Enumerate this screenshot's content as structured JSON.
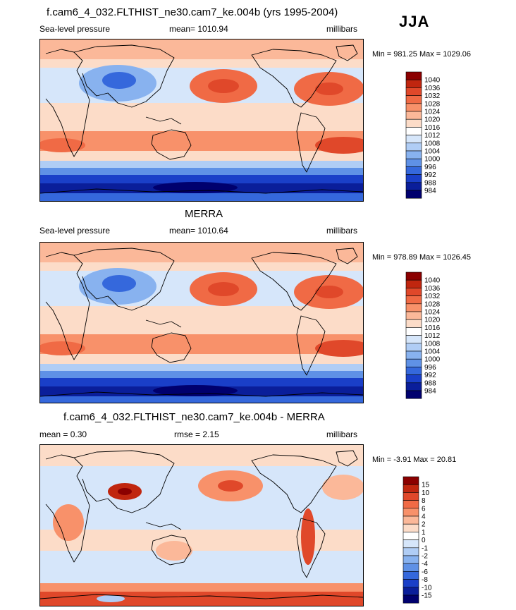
{
  "season": "JJA",
  "chart_data": [
    {
      "type": "heatmap",
      "title": "f.cam6_4_032.FLTHIST_ne30.cam7_ke.004b (yrs 1995-2004)",
      "variable": "Sea-level pressure",
      "stat_label": "mean= 1010.94",
      "units": "millibars",
      "minmax": "Min = 981.25 Max = 1029.06",
      "colorbar_levels": [
        "1040",
        "1036",
        "1032",
        "1028",
        "1024",
        "1020",
        "1016",
        "1012",
        "1008",
        "1004",
        "1000",
        "996",
        "992",
        "988",
        "984"
      ],
      "colorbar_colors": [
        "#8b0000",
        "#c0260f",
        "#e0482a",
        "#f06a45",
        "#f8916a",
        "#fbb899",
        "#fcdcc8",
        "#ffffff",
        "#d6e6fa",
        "#b0cdf5",
        "#88b2ef",
        "#5f91e6",
        "#3568dc",
        "#1a3fc8",
        "#0a1e9a",
        "#00006e"
      ]
    },
    {
      "type": "heatmap",
      "title": "MERRA",
      "variable": "Sea-level pressure",
      "stat_label": "mean= 1010.64",
      "units": "millibars",
      "minmax": "Min = 978.89 Max = 1026.45",
      "colorbar_levels": [
        "1040",
        "1036",
        "1032",
        "1028",
        "1024",
        "1020",
        "1016",
        "1012",
        "1008",
        "1004",
        "1000",
        "996",
        "992",
        "988",
        "984"
      ],
      "colorbar_colors": [
        "#8b0000",
        "#c0260f",
        "#e0482a",
        "#f06a45",
        "#f8916a",
        "#fbb899",
        "#fcdcc8",
        "#ffffff",
        "#d6e6fa",
        "#b0cdf5",
        "#88b2ef",
        "#5f91e6",
        "#3568dc",
        "#1a3fc8",
        "#0a1e9a",
        "#00006e"
      ]
    },
    {
      "type": "heatmap",
      "title": "f.cam6_4_032.FLTHIST_ne30.cam7_ke.004b - MERRA",
      "variable": "mean =   0.30",
      "stat_label": "rmse =   2.15",
      "units": "millibars",
      "minmax": "Min =  -3.91 Max =  20.81",
      "colorbar_levels": [
        "15",
        "10",
        "8",
        "6",
        "4",
        "2",
        "1",
        "0",
        "-1",
        "-2",
        "-4",
        "-6",
        "-8",
        "-10",
        "-15"
      ],
      "colorbar_colors": [
        "#8b0000",
        "#c0260f",
        "#e0482a",
        "#f06a45",
        "#f8916a",
        "#fbb899",
        "#fcdcc8",
        "#ffffff",
        "#d6e6fa",
        "#b0cdf5",
        "#88b2ef",
        "#5f91e6",
        "#3568dc",
        "#1a3fc8",
        "#0a1e9a",
        "#00006e"
      ]
    }
  ]
}
